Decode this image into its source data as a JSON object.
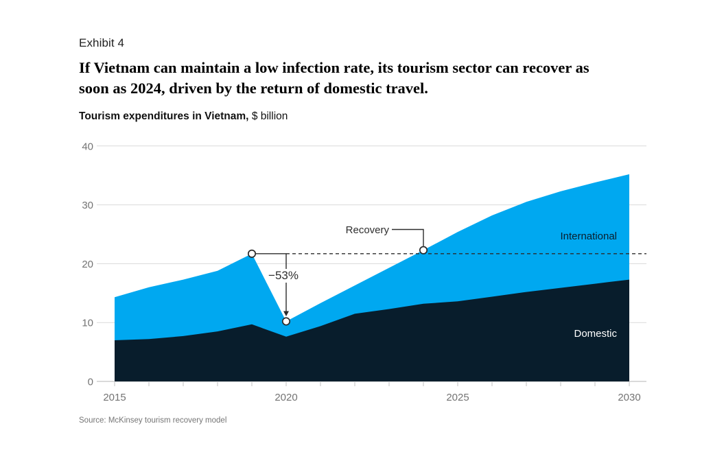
{
  "page": {
    "exhibit_label": "Exhibit 4",
    "headline_line1": "If Vietnam can maintain a low infection rate, its tourism sector can recover as",
    "headline_line2": "soon as 2024, driven by the return of domestic travel.",
    "subtitle_bold": "Tourism expenditures in Vietnam,",
    "subtitle_unit": "$ billion",
    "source": "Source: McKinsey tourism recovery model"
  },
  "colors": {
    "international": "#00A8F0",
    "domestic": "#081D2C",
    "grid": "#D9D9D9",
    "axis_line": "#B5B5B5",
    "tick": "#C2C2C2",
    "axis_text": "#737373",
    "annotation": "#2B2B2B"
  },
  "chart_data": {
    "type": "area",
    "stacked": true,
    "title": "Tourism expenditures in Vietnam, $ billion",
    "xlabel": "",
    "ylabel": "",
    "grid": "horizontal",
    "legend_position": "labels-on-chart",
    "x": [
      2015,
      2016,
      2017,
      2018,
      2019,
      2020,
      2021,
      2022,
      2023,
      2024,
      2025,
      2026,
      2027,
      2028,
      2029,
      2030
    ],
    "series": [
      {
        "name": "Domestic",
        "color": "#081D2C",
        "values": [
          7.0,
          7.2,
          7.7,
          8.5,
          9.7,
          7.6,
          9.4,
          11.5,
          12.3,
          13.2,
          13.6,
          14.4,
          15.2,
          15.9,
          16.6,
          17.3
        ]
      },
      {
        "name": "International",
        "color": "#00A8F0",
        "values": [
          7.3,
          8.8,
          9.6,
          10.3,
          12.0,
          2.6,
          3.9,
          4.8,
          7.0,
          9.1,
          11.8,
          13.8,
          15.3,
          16.4,
          17.2,
          17.9
        ]
      }
    ],
    "totals": [
      14.3,
      16.0,
      17.3,
      18.8,
      21.7,
      10.2,
      13.3,
      16.3,
      19.3,
      22.3,
      25.4,
      28.2,
      30.5,
      32.3,
      33.8,
      35.2
    ],
    "ylim": [
      0,
      40
    ],
    "y_ticks": [
      0,
      10,
      20,
      30,
      40
    ],
    "x_tick_labels": [
      2015,
      2020,
      2025,
      2030
    ],
    "annotations": {
      "peak": {
        "year": 2019,
        "total": 21.7
      },
      "trough": {
        "year": 2020,
        "total": 10.2,
        "label": "−53%"
      },
      "recovery": {
        "year": 2024,
        "total": 22.3,
        "label": "Recovery"
      },
      "dashed_baseline_total": 21.7
    }
  }
}
